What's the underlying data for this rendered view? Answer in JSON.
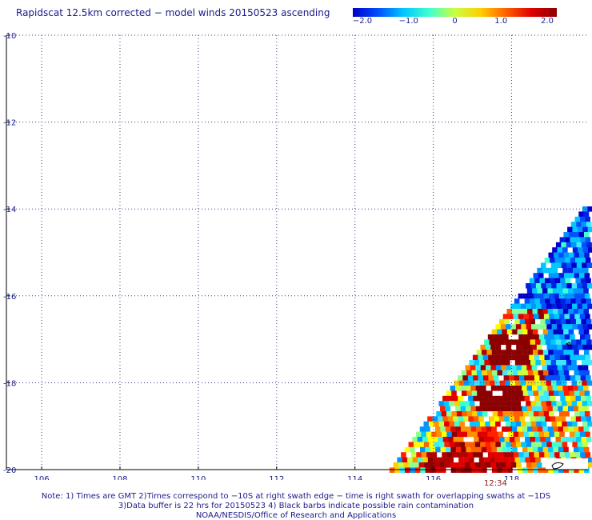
{
  "title": "Rapidscat 12.5km corrected − model winds 20150523 ascending",
  "colorbar": {
    "labels": [
      "−2.0",
      "−1.0",
      "0",
      "1.0",
      "2.0"
    ],
    "min": -2.0,
    "max": 2.0,
    "colors": [
      "#0000c8",
      "#0050ff",
      "#00c8ff",
      "#40ffd0",
      "#c8ff40",
      "#ffd000",
      "#ff6000",
      "#e00000",
      "#8b0000"
    ]
  },
  "map": {
    "lat_labels": [
      "-10",
      "-12",
      "-14",
      "-16",
      "-18",
      "-20"
    ],
    "lon_labels": [
      "106",
      "108",
      "110",
      "112",
      "114",
      "116",
      "118"
    ],
    "lat_range": [
      -20,
      -10
    ],
    "lon_range": [
      105,
      120
    ],
    "grid": "dotted",
    "swath_time": "12:34"
  },
  "notes": [
    "Note: 1) Times are GMT 2)Times correspond to −10S at right swath edge − time is right swath for overlapping swaths at −1DS",
    "3)Data buffer is 22 hrs for 20150523 4) Black barbs indicate possible rain contamination",
    "NOAA/NESDIS/Office of Research and Applications"
  ]
}
